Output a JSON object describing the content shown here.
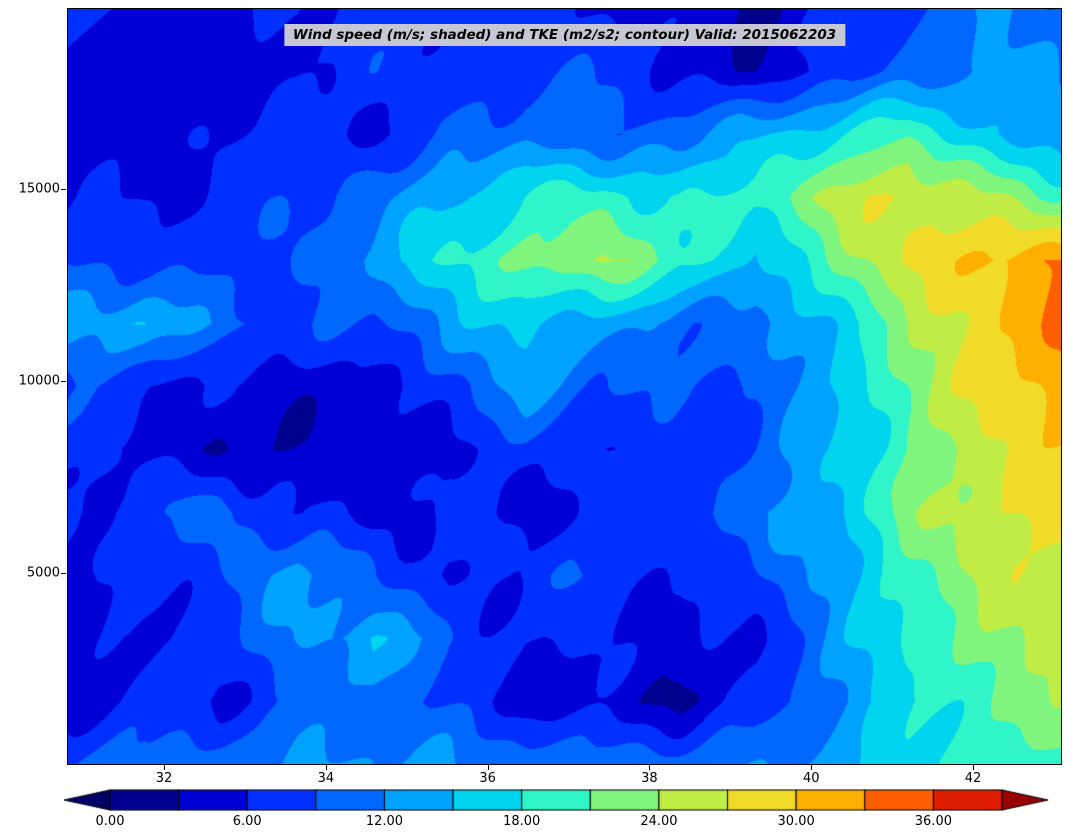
{
  "chart_data": {
    "type": "heatmap",
    "title": "Wind speed (m/s; shaded) and TKE (m2/s2; contour) Valid: 2015062203",
    "xlabel": "",
    "ylabel": "",
    "legend_position": "bottom-colorbar",
    "grid_on": false,
    "x_ticks": [
      32,
      34,
      36,
      38,
      40,
      42
    ],
    "y_ticks": [
      5000,
      10000,
      15000
    ],
    "x_range": [
      30.8,
      43.1
    ],
    "y_range": [
      0,
      19700
    ],
    "shading_units": "m/s",
    "contour_units": "m2/s2",
    "levels": [
      0,
      3,
      6,
      9,
      12,
      15,
      18,
      21,
      24,
      27,
      30,
      33,
      36,
      39
    ],
    "colorbar": {
      "tick_labels": [
        "0.00",
        "6.00",
        "12.00",
        "18.00",
        "24.00",
        "30.00",
        "36.00"
      ],
      "tick_values": [
        0,
        6,
        12,
        18,
        24,
        30,
        36
      ],
      "colors": [
        "#00008f",
        "#0000d6",
        "#0030ff",
        "#0068ff",
        "#00a2ff",
        "#00d4ee",
        "#30f5c8",
        "#80f57d",
        "#c0ec46",
        "#f0dc28",
        "#ffb000",
        "#ff5f00",
        "#dd1c00"
      ],
      "under_color": "#000066",
      "over_color": "#990000"
    },
    "grid": {
      "comment": "Estimated wind speed field (m/s), rows top-to-bottom",
      "x": [
        30.8,
        31.75,
        32.69,
        33.64,
        34.58,
        35.53,
        36.47,
        37.42,
        38.36,
        39.31,
        40.25,
        41.2,
        42.14,
        43.1
      ],
      "y": [
        19700,
        18060,
        16420,
        14780,
        13140,
        11500,
        9860,
        8220,
        6580,
        4940,
        3300,
        1660,
        20
      ],
      "values": [
        [
          6,
          5,
          4,
          7,
          6,
          8,
          7,
          6,
          4,
          3,
          6,
          9,
          12,
          10
        ],
        [
          5,
          3,
          5,
          5,
          8,
          6,
          9,
          8,
          6,
          3,
          7,
          10,
          13,
          12
        ],
        [
          4,
          5,
          6,
          7,
          6,
          9,
          11,
          9,
          11,
          14,
          18,
          20,
          15,
          13
        ],
        [
          6,
          5,
          7,
          8,
          11,
          15,
          18,
          20,
          17,
          19,
          25,
          28,
          24,
          21
        ],
        [
          9,
          8,
          7,
          9,
          13,
          18,
          22,
          25,
          19,
          15,
          21,
          27,
          31,
          33
        ],
        [
          14,
          15,
          11,
          8,
          9,
          13,
          16,
          13,
          11,
          10,
          16,
          23,
          29,
          34
        ],
        [
          8,
          7,
          5,
          4,
          5,
          8,
          13,
          10,
          8,
          9,
          15,
          22,
          28,
          33
        ],
        [
          7,
          5,
          3,
          4,
          3,
          6,
          8,
          6,
          7,
          10,
          14,
          21,
          26,
          30
        ],
        [
          6,
          8,
          11,
          6,
          5,
          7,
          5,
          7,
          9,
          11,
          15,
          22,
          27,
          28
        ],
        [
          5,
          6,
          9,
          13,
          9,
          6,
          7,
          9,
          6,
          8,
          13,
          20,
          25,
          26
        ],
        [
          6,
          5,
          7,
          12,
          15,
          9,
          6,
          7,
          4,
          6,
          12,
          19,
          23,
          25
        ],
        [
          5,
          7,
          6,
          9,
          11,
          8,
          5,
          4,
          3,
          7,
          11,
          17,
          21,
          23
        ],
        [
          9,
          11,
          10,
          12,
          13,
          12,
          11,
          12,
          10,
          11,
          14,
          17,
          19,
          21
        ]
      ]
    }
  }
}
